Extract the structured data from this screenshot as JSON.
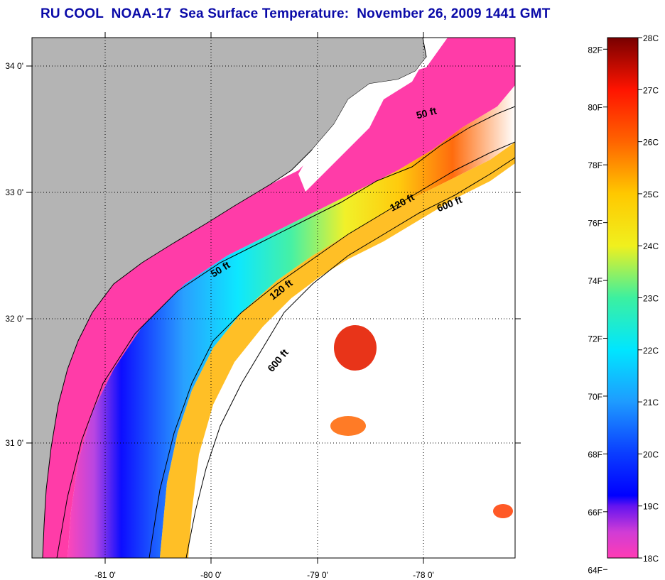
{
  "title": "RU COOL  NOAA-17  Sea Surface Temperature:  November 26, 2009 1441 GMT",
  "map": {
    "lon_ticks": [
      "-81 0'",
      "-80 0'",
      "-79 0'",
      "-78 0'"
    ],
    "lat_ticks": [
      "34 0'",
      "33 0'",
      "32 0'",
      "31 0'"
    ],
    "lon_range": [
      -81.68,
      -77.1
    ],
    "lat_range": [
      30.1,
      34.2
    ],
    "grid": "dotted",
    "contour_labels": [
      {
        "text": "50 ft"
      },
      {
        "text": "50 ft"
      },
      {
        "text": "120 ft"
      },
      {
        "text": "120 ft"
      },
      {
        "text": "600 ft"
      },
      {
        "text": "600 ft"
      }
    ],
    "colors": {
      "land": "#b4b4b4",
      "no_data": "#ffffff",
      "coast": "#000000"
    }
  },
  "colorbar": {
    "f_labels": [
      "82F",
      "80F",
      "78F",
      "76F",
      "74F",
      "72F",
      "70F",
      "68F",
      "66F",
      "64F"
    ],
    "c_labels": [
      "28C",
      "27C",
      "26C",
      "25C",
      "24C",
      "23C",
      "22C",
      "21C",
      "20C",
      "19C",
      "18C"
    ],
    "range_c": [
      18,
      28
    ],
    "stops": [
      {
        "c": 18.0,
        "color": "#ff3cb4"
      },
      {
        "c": 18.5,
        "color": "#d03cd6"
      },
      {
        "c": 19.0,
        "color": "#6414f0"
      },
      {
        "c": 19.2,
        "color": "#0000ff"
      },
      {
        "c": 20.0,
        "color": "#0a3cff"
      },
      {
        "c": 21.0,
        "color": "#1e9bff"
      },
      {
        "c": 22.0,
        "color": "#00e6ff"
      },
      {
        "c": 23.0,
        "color": "#3cf0a0"
      },
      {
        "c": 24.0,
        "color": "#f0f01e"
      },
      {
        "c": 25.0,
        "color": "#ffc800"
      },
      {
        "c": 26.0,
        "color": "#ff6400"
      },
      {
        "c": 27.0,
        "color": "#ff1400"
      },
      {
        "c": 28.0,
        "color": "#780000"
      }
    ]
  }
}
